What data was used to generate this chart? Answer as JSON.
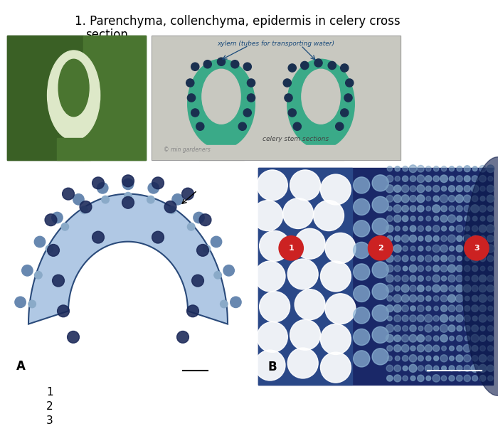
{
  "background_color": "#ffffff",
  "title_line1": "1. Parenchyma, collenchyma, epidermis in celery cross",
  "title_line2": "   section",
  "title_fontsize": 12,
  "label_A": "A",
  "label_B": "B",
  "numbered_labels": [
    "1",
    "2",
    "3"
  ],
  "red_circle_color": "#cc2222",
  "xylem_label": "xylem (tubes for transporting water)",
  "celery_stem_label": "celery stem sections",
  "copyright_label": "© min gardeners"
}
